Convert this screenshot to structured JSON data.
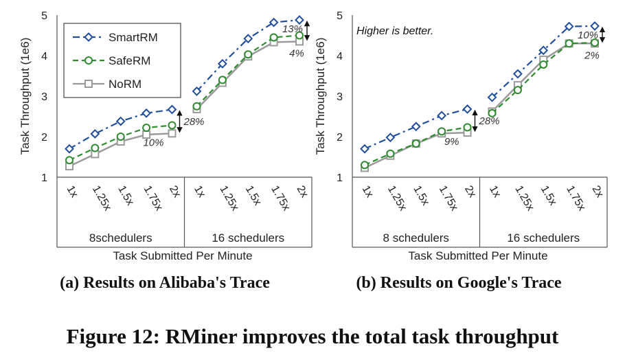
{
  "figure_caption": "Figure 12: RMiner improves the total task throughput",
  "legend": [
    {
      "name": "SmartRM",
      "color": "#1f4e9c",
      "marker": "diamond",
      "dash": "dashdot"
    },
    {
      "name": "SafeRM",
      "color": "#2e8b2e",
      "marker": "circle",
      "dash": "dashed"
    },
    {
      "name": "NoRM",
      "color": "#9a9a9a",
      "marker": "square",
      "dash": "solid"
    }
  ],
  "chart_data": [
    {
      "type": "line",
      "caption": "(a) Results on Alibaba's Trace",
      "ylabel": "Task Throughput (1e6)",
      "xlabel": "Task Submitted Per Minute",
      "ylim": [
        1,
        5
      ],
      "yticks": [
        1,
        2,
        3,
        4,
        5
      ],
      "grid": false,
      "legend_position": "top-left",
      "note": "",
      "groups": [
        {
          "label": "8schedulers",
          "categories": [
            "1x",
            "1.25x",
            "1.5x",
            "1.75x",
            "2x"
          ],
          "series": [
            {
              "name": "SmartRM",
              "values": [
                1.7,
                2.07,
                2.38,
                2.58,
                2.67
              ]
            },
            {
              "name": "SafeRM",
              "values": [
                1.42,
                1.72,
                2.0,
                2.22,
                2.28
              ]
            },
            {
              "name": "NoRM",
              "values": [
                1.27,
                1.57,
                1.88,
                2.05,
                2.08
              ]
            }
          ],
          "annotations": [
            {
              "text": "28%",
              "between": [
                "SmartRM",
                "NoRM"
              ]
            },
            {
              "text": "10%",
              "between": [
                "SafeRM",
                "NoRM"
              ]
            }
          ]
        },
        {
          "label": "16 schedulers",
          "categories": [
            "1x",
            "1.25x",
            "1.5x",
            "1.75x",
            "2x"
          ],
          "series": [
            {
              "name": "SmartRM",
              "values": [
                3.12,
                3.8,
                4.42,
                4.82,
                4.88
              ]
            },
            {
              "name": "SafeRM",
              "values": [
                2.75,
                3.4,
                4.03,
                4.45,
                4.5
              ]
            },
            {
              "name": "NoRM",
              "values": [
                2.68,
                3.33,
                3.98,
                4.33,
                4.35
              ]
            }
          ],
          "annotations": [
            {
              "text": "13%",
              "between": [
                "SmartRM",
                "NoRM"
              ]
            },
            {
              "text": "4%",
              "between": [
                "SafeRM",
                "NoRM"
              ]
            }
          ]
        }
      ]
    },
    {
      "type": "line",
      "caption": "(b) Results on Google's Trace",
      "ylabel": "Task Throughput (1e6)",
      "xlabel": "Task Submitted Per Minute",
      "ylim": [
        1,
        5
      ],
      "yticks": [
        1,
        2,
        3,
        4,
        5
      ],
      "grid": false,
      "legend_position": "none",
      "note": "Higher is better.",
      "groups": [
        {
          "label": "8 schedulers",
          "categories": [
            "1x",
            "1.25x",
            "1.5x",
            "1.75x",
            "2x"
          ],
          "series": [
            {
              "name": "SmartRM",
              "values": [
                1.7,
                1.98,
                2.25,
                2.52,
                2.68
              ]
            },
            {
              "name": "SafeRM",
              "values": [
                1.3,
                1.58,
                1.83,
                2.13,
                2.23
              ]
            },
            {
              "name": "NoRM",
              "values": [
                1.23,
                1.53,
                1.83,
                2.08,
                2.1
              ]
            }
          ],
          "annotations": [
            {
              "text": "28%",
              "between": [
                "SmartRM",
                "NoRM"
              ]
            },
            {
              "text": "9%",
              "between": [
                "SafeRM",
                "NoRM"
              ]
            }
          ]
        },
        {
          "label": "16 schedulers",
          "categories": [
            "1x",
            "1.25x",
            "1.5x",
            "1.75x",
            "2x"
          ],
          "series": [
            {
              "name": "SmartRM",
              "values": [
                2.97,
                3.55,
                4.13,
                4.72,
                4.73
              ]
            },
            {
              "name": "SafeRM",
              "values": [
                2.58,
                3.15,
                3.78,
                4.3,
                4.32
              ]
            },
            {
              "name": "NoRM",
              "values": [
                2.62,
                3.27,
                3.9,
                4.3,
                4.3
              ]
            }
          ],
          "annotations": [
            {
              "text": "10%",
              "between": [
                "SmartRM",
                "NoRM"
              ]
            },
            {
              "text": "2%",
              "between": [
                "SafeRM",
                "NoRM"
              ]
            }
          ]
        }
      ]
    }
  ]
}
